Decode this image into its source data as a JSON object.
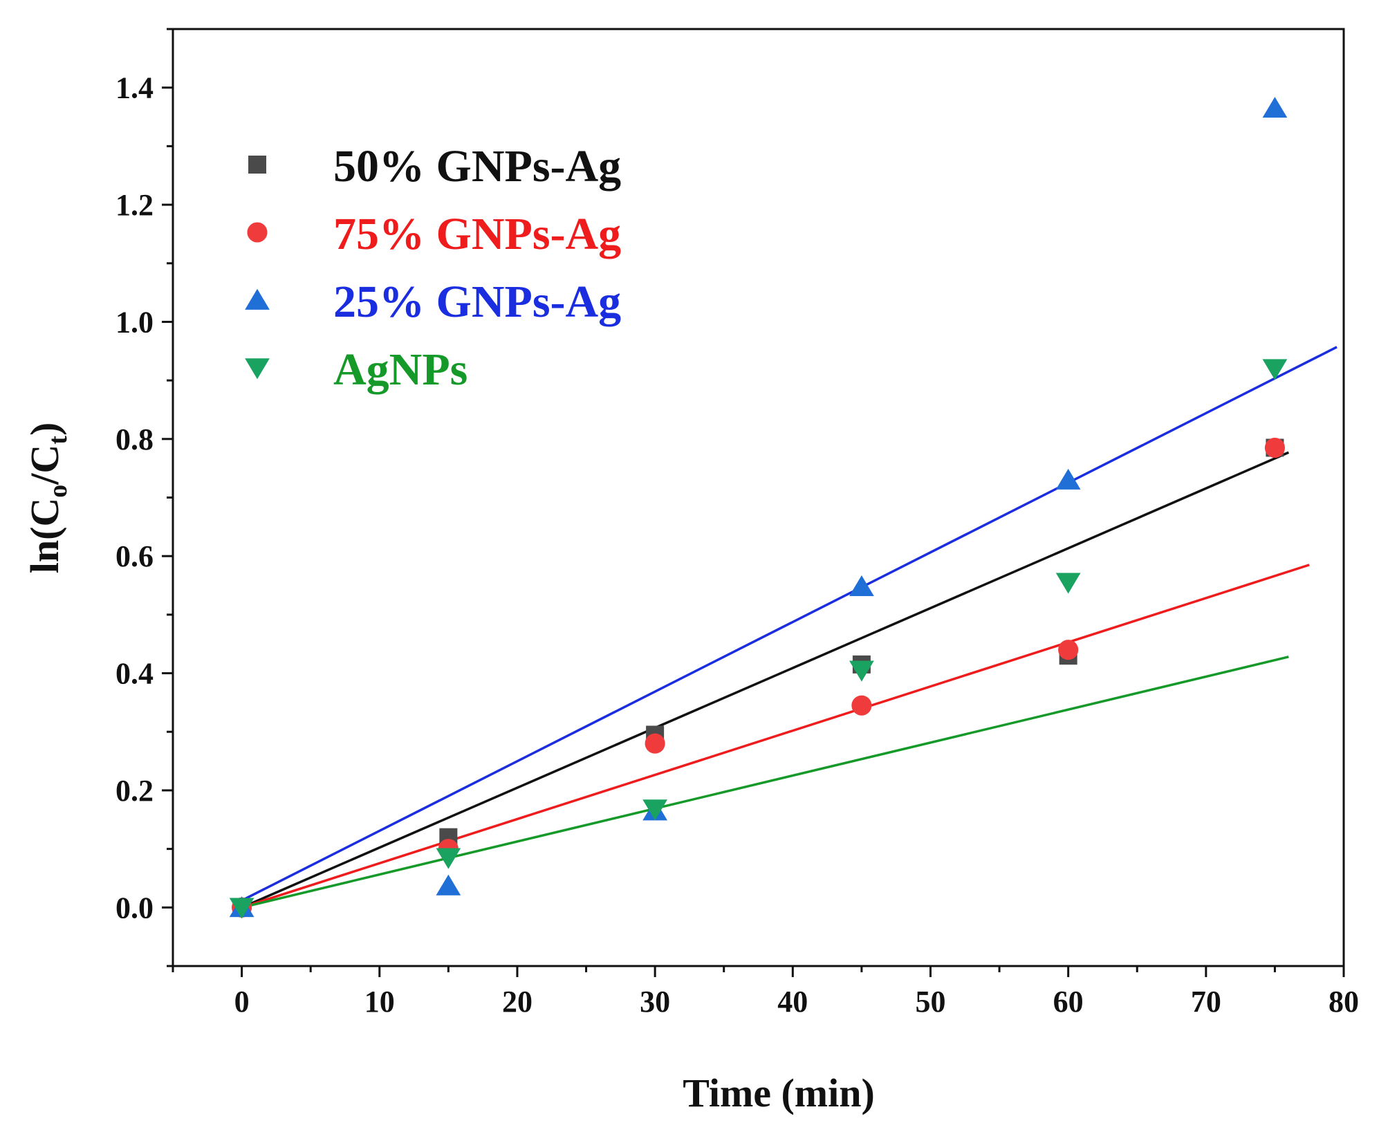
{
  "chart_data": {
    "type": "scatter",
    "title": "",
    "xlabel": "Time (min)",
    "ylabel": {
      "prefix": "ln(C",
      "sub1": "o",
      "mid": "/C",
      "sub2": "t",
      "suffix": ")"
    },
    "xlim": [
      -5,
      80
    ],
    "ylim": [
      -0.1,
      1.5
    ],
    "x_ticks": [
      "0",
      "10",
      "20",
      "30",
      "40",
      "50",
      "60",
      "70",
      "80"
    ],
    "y_ticks": [
      "0.0",
      "0.2",
      "0.4",
      "0.6",
      "0.8",
      "1.0",
      "1.2",
      "1.4"
    ],
    "legend_position": "top-left",
    "series": [
      {
        "name": "50% GNPs-Ag",
        "color": "#4a4a4a",
        "text_color": "#111111",
        "marker": "square",
        "x": [
          0,
          15,
          30,
          45,
          60,
          75
        ],
        "y": [
          0,
          0.12,
          0.295,
          0.415,
          0.43,
          0.785
        ],
        "fit": {
          "x": [
            0,
            76
          ],
          "y": [
            0,
            0.777
          ]
        }
      },
      {
        "name": "75% GNPs-Ag",
        "color": "#ef3b3b",
        "text_color": "#ee1c1c",
        "marker": "circle",
        "x": [
          0,
          15,
          30,
          45,
          60,
          75
        ],
        "y": [
          0,
          0.1,
          0.28,
          0.345,
          0.44,
          0.785
        ],
        "fit": {
          "x": [
            0,
            77.5
          ],
          "y": [
            0,
            0.585
          ]
        }
      },
      {
        "name": "25% GNPs-Ag",
        "color": "#1f6fd6",
        "text_color": "#1a2ee0",
        "marker": "triangle-up",
        "x": [
          0,
          15,
          30,
          45,
          60,
          75
        ],
        "y": [
          0,
          0.037,
          0.165,
          0.548,
          0.73,
          1.365
        ],
        "fit": {
          "x": [
            0,
            79.5
          ],
          "y": [
            0.012,
            0.957
          ]
        }
      },
      {
        "name": "AgNPs",
        "color": "#1aa261",
        "text_color": "#159a2a",
        "marker": "triangle-down",
        "x": [
          0,
          15,
          30,
          45,
          60,
          75
        ],
        "y": [
          0,
          0.085,
          0.168,
          0.405,
          0.555,
          0.92
        ],
        "fit": {
          "x": [
            0,
            76
          ],
          "y": [
            0,
            0.428
          ]
        }
      }
    ]
  }
}
